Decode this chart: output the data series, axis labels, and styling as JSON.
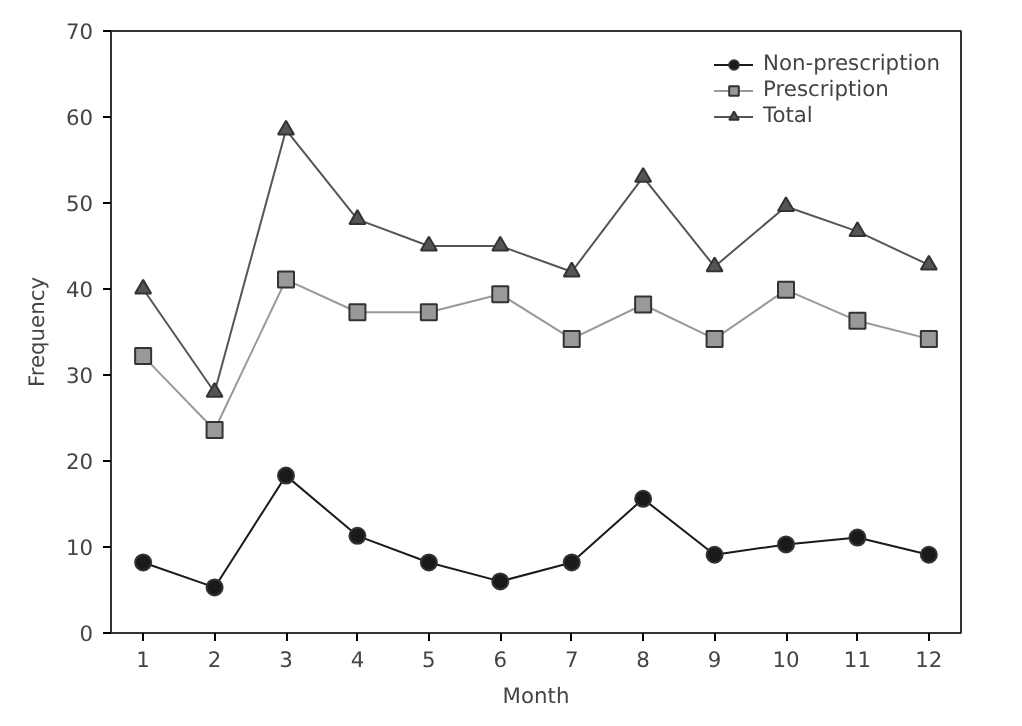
{
  "chart_data": {
    "type": "line",
    "xlabel": "Month",
    "ylabel": "Frequency",
    "x": [
      1,
      2,
      3,
      4,
      5,
      6,
      7,
      8,
      9,
      10,
      11,
      12
    ],
    "xlim": [
      0.55,
      12.45
    ],
    "xticks": [
      1,
      2,
      3,
      4,
      5,
      6,
      7,
      8,
      9,
      10,
      11,
      12
    ],
    "ylim": [
      0,
      70
    ],
    "yticks": [
      0,
      10,
      20,
      30,
      40,
      50,
      60,
      70
    ],
    "grid": false,
    "legend": "top right",
    "series": [
      {
        "name": "Non-prescription",
        "color": "#1a1a1a",
        "marker": "circle",
        "values": [
          8.2,
          5.3,
          18.3,
          11.3,
          8.2,
          6,
          8.2,
          15.6,
          9.1,
          10.3,
          11.1,
          9.1
        ]
      },
      {
        "name": "Prescription",
        "color": "#999999",
        "marker": "square",
        "values": [
          32.2,
          23.6,
          41.1,
          37.3,
          37.3,
          39.4,
          34.2,
          38.2,
          34.2,
          39.9,
          36.3,
          34.2
        ]
      },
      {
        "name": "Total",
        "color": "#555555",
        "marker": "triangle",
        "values": [
          40,
          28,
          58.5,
          48.1,
          45,
          45,
          42,
          53,
          42.6,
          49.6,
          46.7,
          42.8
        ]
      }
    ]
  }
}
